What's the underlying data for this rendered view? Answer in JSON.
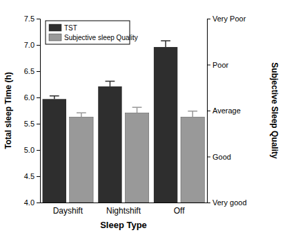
{
  "chart_data": {
    "type": "bar",
    "x_label": "Sleep Type",
    "y_label": "Total sleep Time (h)",
    "y2_label": "Subjective Sleep Quality",
    "categories": [
      "Dayshift",
      "Nightshift",
      "Off"
    ],
    "series": [
      {
        "name": "TST",
        "color": "#2e2e2e",
        "values": [
          5.97,
          6.21,
          6.96
        ],
        "errors": [
          0.06,
          0.1,
          0.12
        ]
      },
      {
        "name": "Subjective sleep Quality",
        "color": "#999999",
        "axis": "y2",
        "values": [
          2.86,
          2.95,
          2.86
        ],
        "errors": [
          0.09,
          0.12,
          0.13
        ]
      }
    ],
    "ylim": [
      4.0,
      7.5
    ],
    "yticks": [
      {
        "value": 4.0,
        "label": "4.0"
      },
      4.5,
      {
        "value": 5.0,
        "label": "5.0"
      },
      5.5,
      {
        "value": 6.0,
        "label": "6.0"
      },
      6.5,
      {
        "value": 7.0,
        "label": "7.0"
      },
      7.5
    ],
    "y2lim": [
      1,
      5
    ],
    "y2ticks": [
      {
        "value": 1,
        "label": "Very good"
      },
      {
        "value": 2,
        "label": "Good"
      },
      {
        "value": 3,
        "label": "Average"
      },
      {
        "value": 4,
        "label": "Poor"
      },
      {
        "value": 5,
        "label": "Very Poor"
      }
    ],
    "legend": "top-left",
    "grid": false
  }
}
